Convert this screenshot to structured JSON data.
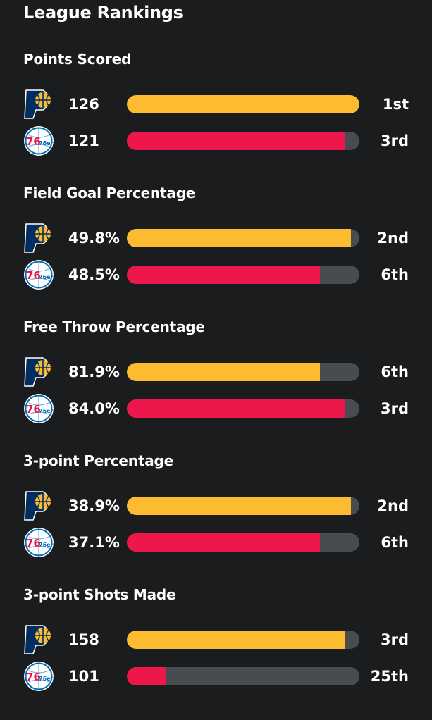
{
  "page": {
    "title": "League Rankings"
  },
  "colors": {
    "background": "#1b1c1e",
    "pacers_bar": "#fdbb30",
    "sixers_bar": "#ed174c",
    "bar_track": "#484b50",
    "pacers_logo_navy": "#002d62",
    "pacers_logo_gold": "#fdbb30",
    "sixers_logo_blue": "#006bb6",
    "sixers_logo_red": "#ed174c"
  },
  "teams": [
    {
      "key": "pacers",
      "logo_icon": "indiana-pacers-logo-icon"
    },
    {
      "key": "sixers",
      "logo_icon": "philadelphia-76ers-logo-icon",
      "logo_text": "76ers"
    }
  ],
  "sections": [
    {
      "title": "Points Scored",
      "rows": [
        {
          "team": "pacers",
          "value": "126",
          "rank": "1st",
          "fill_fraction": 1.0
        },
        {
          "team": "sixers",
          "value": "121",
          "rank": "3rd",
          "fill_fraction": 0.935
        }
      ]
    },
    {
      "title": "Field Goal Percentage",
      "rows": [
        {
          "team": "pacers",
          "value": "49.8%",
          "rank": "2nd",
          "fill_fraction": 0.965
        },
        {
          "team": "sixers",
          "value": "48.5%",
          "rank": "6th",
          "fill_fraction": 0.83
        }
      ]
    },
    {
      "title": "Free Throw Percentage",
      "rows": [
        {
          "team": "pacers",
          "value": "81.9%",
          "rank": "6th",
          "fill_fraction": 0.83
        },
        {
          "team": "sixers",
          "value": "84.0%",
          "rank": "3rd",
          "fill_fraction": 0.935
        }
      ]
    },
    {
      "title": "3-point Percentage",
      "rows": [
        {
          "team": "pacers",
          "value": "38.9%",
          "rank": "2nd",
          "fill_fraction": 0.965
        },
        {
          "team": "sixers",
          "value": "37.1%",
          "rank": "6th",
          "fill_fraction": 0.83
        }
      ]
    },
    {
      "title": "3-point Shots Made",
      "rows": [
        {
          "team": "pacers",
          "value": "158",
          "rank": "3rd",
          "fill_fraction": 0.935
        },
        {
          "team": "sixers",
          "value": "101",
          "rank": "25th",
          "fill_fraction": 0.17
        }
      ]
    }
  ]
}
